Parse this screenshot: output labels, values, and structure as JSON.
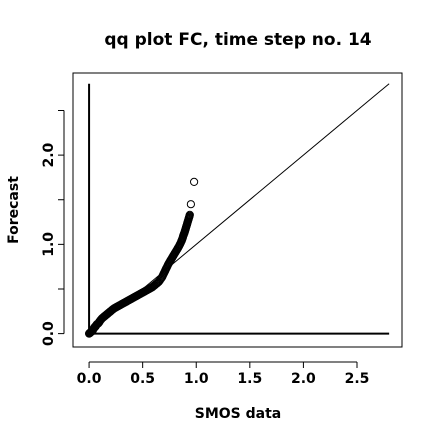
{
  "chart_data": {
    "type": "scatter",
    "title": "qq plot FC, time step no. 14",
    "xlabel": "SMOS data",
    "ylabel": "Forecast",
    "xlim": [
      -0.15,
      2.92
    ],
    "ylim": [
      -0.15,
      2.92
    ],
    "x_ticks": [
      0.0,
      0.5,
      1.0,
      1.5,
      2.0,
      2.5
    ],
    "x_tick_labels": [
      "0.0",
      "0.5",
      "1.0",
      "1.5",
      "2.0",
      "2.5"
    ],
    "y_ticks": [
      0.0,
      0.5,
      1.0,
      1.5,
      2.0,
      2.5
    ],
    "y_tick_labels": [
      "0.0",
      "",
      "1.0",
      "",
      "2.0",
      ""
    ],
    "grid": false,
    "marker": "open-circle",
    "colors": {
      "points": "#000000",
      "lines": "#000000"
    },
    "reference_lines": [
      {
        "kind": "identity",
        "from": [
          0.0,
          0.0
        ],
        "to": [
          2.8,
          2.8
        ]
      },
      {
        "kind": "vertical",
        "x": 0.0,
        "from_y": 0.0,
        "to_y": 2.8
      },
      {
        "kind": "horizontal",
        "y": 0.0,
        "from_x": 0.0,
        "to_x": 2.8
      }
    ],
    "series": [
      {
        "x": [
          0.0,
          0.01,
          0.02,
          0.03,
          0.04,
          0.05,
          0.06,
          0.07,
          0.08,
          0.09,
          0.1,
          0.12,
          0.14,
          0.16,
          0.18,
          0.2,
          0.23,
          0.26,
          0.29,
          0.32,
          0.35,
          0.38,
          0.41,
          0.44,
          0.47,
          0.5,
          0.53,
          0.56,
          0.59,
          0.62,
          0.65,
          0.68,
          0.7,
          0.72,
          0.74,
          0.76,
          0.78,
          0.8,
          0.82,
          0.84,
          0.86,
          0.87,
          0.88,
          0.89,
          0.9,
          0.91,
          0.92,
          0.93,
          0.94,
          0.95,
          0.98
        ],
        "y": [
          0.0,
          0.01,
          0.02,
          0.03,
          0.05,
          0.07,
          0.08,
          0.1,
          0.11,
          0.12,
          0.14,
          0.17,
          0.19,
          0.21,
          0.23,
          0.25,
          0.28,
          0.3,
          0.32,
          0.34,
          0.36,
          0.38,
          0.4,
          0.42,
          0.44,
          0.46,
          0.48,
          0.5,
          0.52,
          0.55,
          0.58,
          0.63,
          0.68,
          0.73,
          0.78,
          0.82,
          0.86,
          0.9,
          0.94,
          0.98,
          1.03,
          1.06,
          1.1,
          1.13,
          1.17,
          1.21,
          1.25,
          1.29,
          1.33,
          1.45,
          1.7
        ]
      }
    ]
  }
}
